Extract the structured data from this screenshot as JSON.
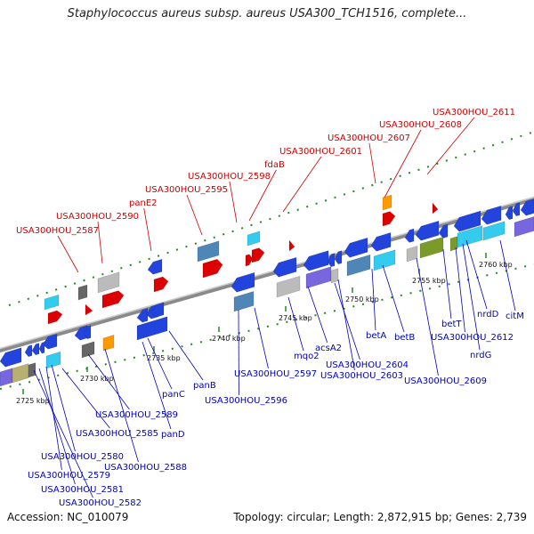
{
  "title": "Staphylococcus aureus subsp. aureus USA300_TCH1516, complete...",
  "footer": {
    "accession": "Accession: NC_010079",
    "topology": "Topology: circular; Length: 2,872,915 bp; Genes: 2,739"
  },
  "colors": {
    "forward_gene": "#dd0000",
    "reverse_gene": "#2244dd",
    "cyan": "#33ccee",
    "gray": "#bbbbbb",
    "steel": "#4f86b8",
    "purple": "#7766dd",
    "olive": "#7a9a2a",
    "orange": "#ff9900",
    "tick_green": "#228822",
    "backbone": "#888888"
  },
  "ticks": [
    "2725 kbp",
    "2730 kbp",
    "2735 kbp",
    "2740 kbp",
    "2745 kbp",
    "2750 kbp",
    "2755 kbp",
    "2760 kbp"
  ],
  "labels_top": [
    "USA300HOU_2587",
    "USA300HOU_2590",
    "panE2",
    "USA300HOU_2595",
    "USA300HOU_2598",
    "fdaB",
    "USA300HOU_2601",
    "USA300HOU_2607",
    "USA300HOU_2608",
    "USA300HOU_2611"
  ],
  "labels_bottom": [
    "USA300HOU_2580",
    "USA300HOU_2579",
    "USA300HOU_2581",
    "USA300HOU_2582",
    "USA300HOU_2585",
    "USA300HOU_2589",
    "USA300HOU_2588",
    "panC",
    "panD",
    "panB",
    "USA300HOU_2596",
    "USA300HOU_2597",
    "mqo2",
    "acsA2",
    "USA300HOU_2604",
    "USA300HOU_2603",
    "betA",
    "betB",
    "USA300HOU_2609",
    "betT",
    "USA300HOU_2612",
    "nrdG",
    "nrdD",
    "citM"
  ]
}
